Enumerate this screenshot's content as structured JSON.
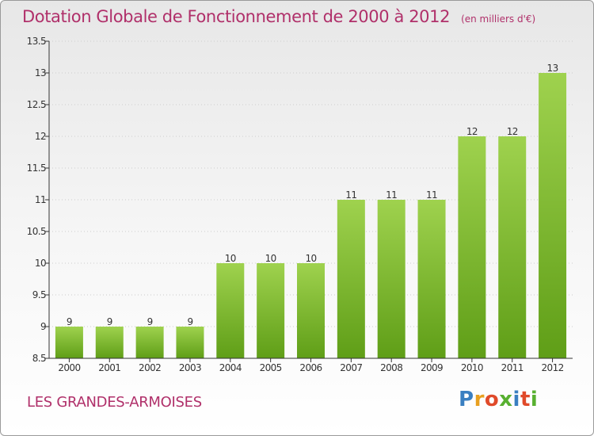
{
  "title": "Dotation Globale de Fonctionnement de 2000 à 2012",
  "unit": "(en milliers d'€)",
  "commune": "LES GRANDES-ARMOISES",
  "logo": {
    "text": "Proxiti",
    "colors": [
      "#3a7fc1",
      "#e8a020",
      "#e04a2a",
      "#58b030",
      "#3a7fc1",
      "#e04a2a",
      "#58b030"
    ]
  },
  "colors": {
    "title": "#b0306a",
    "bar_top": "#9fd24e",
    "bar_bottom": "#5f9e17",
    "axis": "#333333",
    "grid": "#cccccc"
  },
  "chart_data": {
    "type": "bar",
    "categories": [
      "2000",
      "2001",
      "2002",
      "2003",
      "2004",
      "2005",
      "2006",
      "2007",
      "2008",
      "2009",
      "2010",
      "2011",
      "2012"
    ],
    "values": [
      9,
      9,
      9,
      9,
      10,
      10,
      10,
      11,
      11,
      11,
      12,
      12,
      13
    ],
    "data_labels": [
      "9",
      "9",
      "9",
      "9",
      "10",
      "10",
      "10",
      "11",
      "11",
      "11",
      "12",
      "12",
      "13"
    ],
    "title": "Dotation Globale de Fonctionnement de 2000 à 2012",
    "xlabel": "",
    "ylabel": "",
    "ylim": [
      8.5,
      13.5
    ],
    "yticks": [
      8.5,
      9,
      9.5,
      10,
      10.5,
      11,
      11.5,
      12,
      12.5,
      13,
      13.5
    ],
    "ytick_labels": [
      "8.5",
      "9",
      "9.5",
      "10",
      "10.5",
      "11",
      "11.5",
      "12",
      "12.5",
      "13",
      "13.5"
    ],
    "grid": "horizontal"
  }
}
